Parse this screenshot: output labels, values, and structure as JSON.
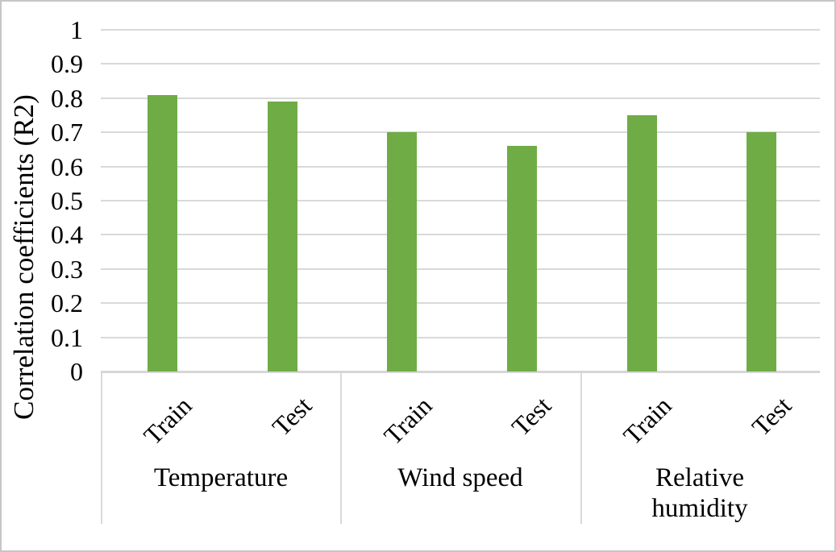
{
  "chart_data": {
    "type": "bar",
    "title": "",
    "xlabel": "",
    "ylabel": "Correlation coefficients (R2)",
    "ylim": [
      0,
      1
    ],
    "grid": true,
    "legend_position": "none",
    "yticks": [
      {
        "value": 1.0,
        "label": "1"
      },
      {
        "value": 0.9,
        "label": "0.9"
      },
      {
        "value": 0.8,
        "label": "0.8"
      },
      {
        "value": 0.7,
        "label": "0.7"
      },
      {
        "value": 0.6,
        "label": "0.6"
      },
      {
        "value": 0.5,
        "label": "0.5"
      },
      {
        "value": 0.4,
        "label": "0.4"
      },
      {
        "value": 0.3,
        "label": "0.3"
      },
      {
        "value": 0.2,
        "label": "0.2"
      },
      {
        "value": 0.1,
        "label": "0.1"
      },
      {
        "value": 0.0,
        "label": "0"
      }
    ],
    "categories": [
      "Temperature",
      "Wind speed",
      "Relative humidity"
    ],
    "series_labels": [
      "Train",
      "Test"
    ],
    "groups": [
      {
        "category": "Temperature",
        "bars": [
          {
            "label": "Train",
            "value": 0.81
          },
          {
            "label": "Test",
            "value": 0.79
          }
        ]
      },
      {
        "category": "Wind speed",
        "bars": [
          {
            "label": "Train",
            "value": 0.7
          },
          {
            "label": "Test",
            "value": 0.66
          }
        ]
      },
      {
        "category": "Relative humidity",
        "bars": [
          {
            "label": "Train",
            "value": 0.75
          },
          {
            "label": "Test",
            "value": 0.7
          }
        ]
      }
    ]
  },
  "colors": {
    "bar": "#6FAC46",
    "gridline": "#D9D9D9",
    "axis_line": "#D6D6D6",
    "divider": "#D9D9D9",
    "text": "#000000",
    "frame_border": "#C6C6C6",
    "background": "#FFFFFF"
  }
}
